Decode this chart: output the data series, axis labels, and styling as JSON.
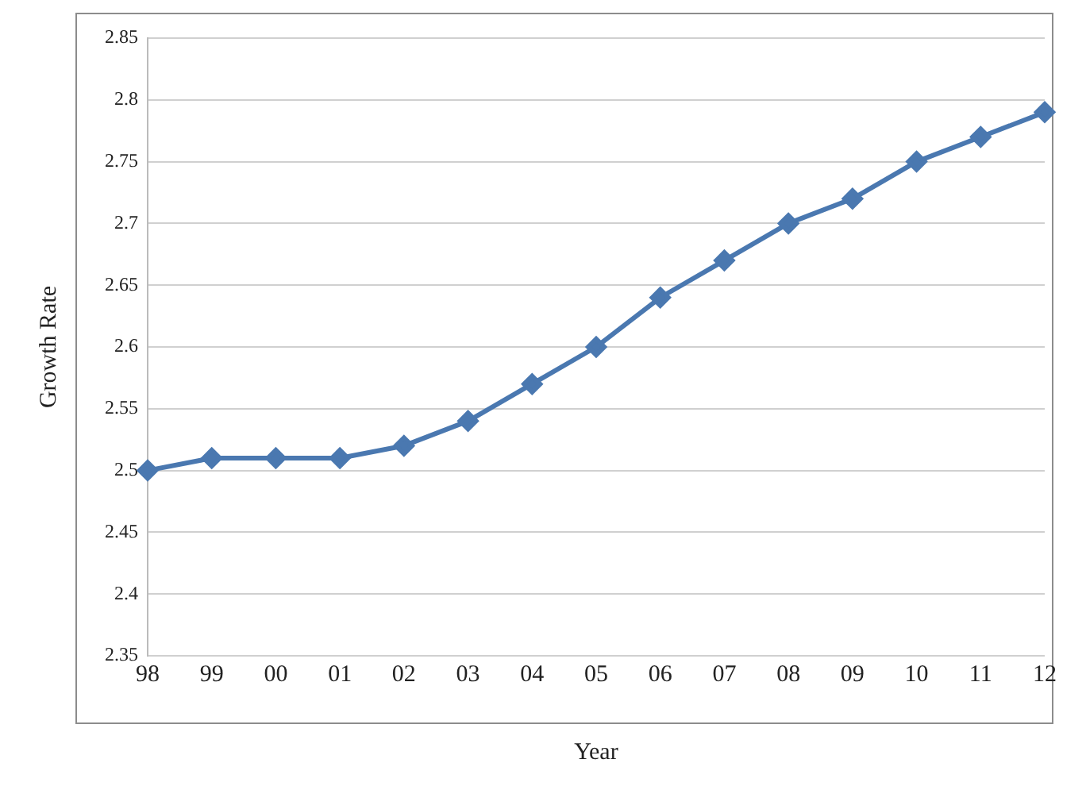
{
  "chart_data": {
    "type": "line",
    "xlabel": "Year",
    "ylabel": "Growth Rate",
    "categories": [
      "98",
      "99",
      "00",
      "01",
      "02",
      "03",
      "04",
      "05",
      "06",
      "07",
      "08",
      "09",
      "10",
      "11",
      "12"
    ],
    "series": [
      {
        "color": "#4a78b0",
        "values": [
          2.5,
          2.51,
          2.51,
          2.51,
          2.52,
          2.54,
          2.57,
          2.6,
          2.64,
          2.67,
          2.7,
          2.72,
          2.75,
          2.77,
          2.79
        ]
      }
    ],
    "ylim": [
      2.35,
      2.85
    ],
    "yticks": [
      2.35,
      2.4,
      2.45,
      2.5,
      2.55,
      2.6,
      2.65,
      2.7,
      2.75,
      2.8,
      2.85
    ],
    "grid": "y",
    "marker": "diamond",
    "line_style": "solid",
    "legend": false
  }
}
